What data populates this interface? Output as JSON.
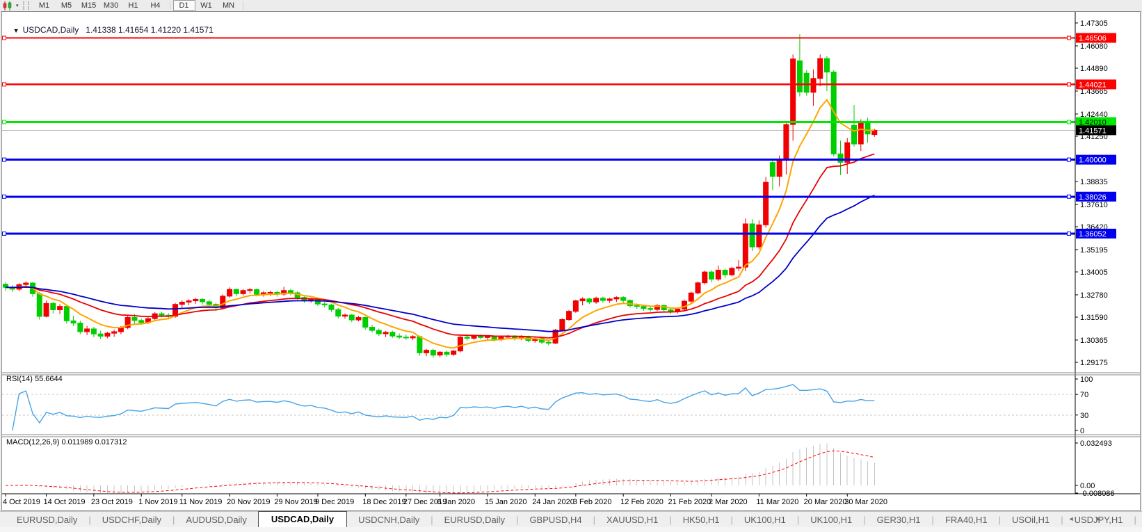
{
  "toolbar": {
    "timeframes": [
      "M1",
      "M5",
      "M15",
      "M30",
      "H1",
      "H4",
      "D1",
      "W1",
      "MN"
    ],
    "active_timeframe": "D1",
    "icons": {
      "chart_type": "candlestick-chart-icon",
      "dropdown": "▾"
    }
  },
  "chart_header": {
    "dropdown_icon": "▼",
    "symbol": "USDCAD,Daily",
    "ohlc": "1.41338 1.41654 1.41220 1.41571"
  },
  "price_axis": {
    "ticks": [
      "1.47305",
      "1.46080",
      "1.44890",
      "1.43665",
      "1.42440",
      "1.41250",
      "1.38835",
      "1.37610",
      "1.36420",
      "1.35195",
      "1.34005",
      "1.32780",
      "1.31590",
      "1.30365",
      "1.29175"
    ]
  },
  "hlines": [
    {
      "price": 1.46506,
      "label": "1.46506",
      "color": "#FF0000",
      "text_color": "#FFFFFF",
      "width": 2.4
    },
    {
      "price": 1.44021,
      "label": "1.44021",
      "color": "#FF0000",
      "text_color": "#FFFFFF",
      "width": 2.4
    },
    {
      "price": 1.4201,
      "label": "1.42010",
      "color": "#00E800",
      "text_color": "#000000",
      "width": 3
    },
    {
      "price": 1.4,
      "label": "1.40000",
      "color": "#0000EE",
      "text_color": "#FFFFFF",
      "width": 3
    },
    {
      "price": 1.38026,
      "label": "1.38026",
      "color": "#0000EE",
      "text_color": "#FFFFFF",
      "width": 3
    },
    {
      "price": 1.36052,
      "label": "1.36052",
      "color": "#0000EE",
      "text_color": "#FFFFFF",
      "width": 3
    }
  ],
  "current_price": {
    "value": 1.41571,
    "label": "1.41571",
    "line_color": "#BBBBBB",
    "bg": "#000000",
    "text_color": "#FFFFFF"
  },
  "indicators": {
    "rsi": {
      "label": "RSI(14) 55.6644",
      "period": 14,
      "value": "55.6644",
      "scale_labels": [
        "100",
        "70",
        "30",
        "0"
      ],
      "levels": [
        70,
        30
      ],
      "color": "#46A3E8"
    },
    "macd": {
      "label": "MACD(12,26,9) 0.011989 0.017312",
      "params": "12,26,9",
      "values": [
        "0.011989",
        "0.017312"
      ],
      "scale_labels": [
        {
          "v": 0.032493,
          "text": "0.032493"
        },
        {
          "v": 0.0,
          "text": "0.00"
        },
        {
          "v": -0.008086,
          "text": "-0.008086"
        }
      ],
      "histogram_color": "#C4C4C4",
      "signal_color": "#FF0000"
    }
  },
  "time_axis": {
    "labels": [
      {
        "text": "4 Oct 2019",
        "bar": 0
      },
      {
        "text": "14 Oct 2019",
        "bar": 6
      },
      {
        "text": "23 Oct 2019",
        "bar": 13
      },
      {
        "text": "1 Nov 2019",
        "bar": 20
      },
      {
        "text": "11 Nov 2019",
        "bar": 26
      },
      {
        "text": "20 Nov 2019",
        "bar": 33
      },
      {
        "text": "29 Nov 2019",
        "bar": 40
      },
      {
        "text": "9 Dec 2019",
        "bar": 46
      },
      {
        "text": "18 Dec 2019",
        "bar": 53
      },
      {
        "text": "27 Dec 2019",
        "bar": 59
      },
      {
        "text": "6 Jan 2020",
        "bar": 64
      },
      {
        "text": "15 Jan 2020",
        "bar": 71
      },
      {
        "text": "24 Jan 2020",
        "bar": 78
      },
      {
        "text": "3 Feb 2020",
        "bar": 84
      },
      {
        "text": "12 Feb 2020",
        "bar": 91
      },
      {
        "text": "21 Feb 2020",
        "bar": 98
      },
      {
        "text": "2 Mar 2020",
        "bar": 104
      },
      {
        "text": "11 Mar 2020",
        "bar": 111
      },
      {
        "text": "20 Mar 2020",
        "bar": 118
      },
      {
        "text": "30 Mar 2020",
        "bar": 124
      }
    ]
  },
  "tabs": {
    "items": [
      {
        "label": "EURUSD,Daily",
        "active": false
      },
      {
        "label": "USDCHF,Daily",
        "active": false
      },
      {
        "label": "AUDUSD,Daily",
        "active": false
      },
      {
        "label": "USDCAD,Daily",
        "active": true
      },
      {
        "label": "USDCNH,Daily",
        "active": false
      },
      {
        "label": "EURUSD,Daily",
        "active": false
      },
      {
        "label": "GBPUSD,H4",
        "active": false
      },
      {
        "label": "XAUUSD,H1",
        "active": false
      },
      {
        "label": "HK50,H1",
        "active": false
      },
      {
        "label": "UK100,H1",
        "active": false
      },
      {
        "label": "UK100,H1",
        "active": false
      },
      {
        "label": "GER30,H1",
        "active": false
      },
      {
        "label": "FRA40,H1",
        "active": false
      },
      {
        "label": "USOil,H1",
        "active": false
      },
      {
        "label": "USDJPY,H1",
        "active": false
      }
    ],
    "scroll_arrows": "◄  ►"
  },
  "chart_data": {
    "type": "candlestick",
    "symbol": "USDCAD",
    "timeframe": "Daily",
    "title_ohlc": {
      "open": 1.41338,
      "high": 1.41654,
      "low": 1.4122,
      "close": 1.41571
    },
    "bull_color": "#F00000",
    "bear_color": "#00CE00",
    "note": "red candles = up days, green candles = down days",
    "y_axis_top": 1.47899,
    "y_axis_bottom": 1.28655,
    "moving_averages": [
      {
        "name": "fast",
        "period": 8,
        "color": "#FFA500"
      },
      {
        "name": "medium",
        "period": 21,
        "color": "#E80000"
      },
      {
        "name": "slow",
        "period": 40,
        "color": "#0000C8"
      }
    ],
    "candles": [
      [
        1.3335,
        1.3347,
        1.33,
        1.3318
      ],
      [
        1.3318,
        1.333,
        1.3293,
        1.3308
      ],
      [
        1.3308,
        1.334,
        1.3298,
        1.3333
      ],
      [
        1.3333,
        1.335,
        1.3315,
        1.3341
      ],
      [
        1.3341,
        1.3346,
        1.3268,
        1.3284
      ],
      [
        1.3284,
        1.3292,
        1.3145,
        1.3163
      ],
      [
        1.3163,
        1.3247,
        1.3158,
        1.3232
      ],
      [
        1.3232,
        1.324,
        1.3178,
        1.3198
      ],
      [
        1.3198,
        1.3228,
        1.3175,
        1.3216
      ],
      [
        1.3216,
        1.3222,
        1.3124,
        1.3139
      ],
      [
        1.3139,
        1.3166,
        1.3112,
        1.3127
      ],
      [
        1.3127,
        1.314,
        1.3068,
        1.3081
      ],
      [
        1.3081,
        1.3112,
        1.3063,
        1.3096
      ],
      [
        1.3096,
        1.3106,
        1.3052,
        1.3069
      ],
      [
        1.3069,
        1.3086,
        1.3042,
        1.3057
      ],
      [
        1.3057,
        1.3081,
        1.3046,
        1.3073
      ],
      [
        1.3073,
        1.3092,
        1.3054,
        1.3081
      ],
      [
        1.3081,
        1.3112,
        1.3068,
        1.3103
      ],
      [
        1.3103,
        1.3167,
        1.3094,
        1.3157
      ],
      [
        1.3157,
        1.3176,
        1.3123,
        1.3141
      ],
      [
        1.3141,
        1.3152,
        1.3118,
        1.313
      ],
      [
        1.313,
        1.316,
        1.3122,
        1.3151
      ],
      [
        1.3151,
        1.3186,
        1.314,
        1.3177
      ],
      [
        1.3177,
        1.3188,
        1.3158,
        1.3169
      ],
      [
        1.3169,
        1.318,
        1.3148,
        1.3163
      ],
      [
        1.3163,
        1.3235,
        1.3155,
        1.3227
      ],
      [
        1.3227,
        1.3248,
        1.3208,
        1.3239
      ],
      [
        1.3239,
        1.3254,
        1.3222,
        1.3246
      ],
      [
        1.3246,
        1.3262,
        1.323,
        1.3254
      ],
      [
        1.3254,
        1.326,
        1.3226,
        1.3241
      ],
      [
        1.3241,
        1.325,
        1.3212,
        1.3227
      ],
      [
        1.3227,
        1.3236,
        1.3192,
        1.3209
      ],
      [
        1.3209,
        1.328,
        1.3202,
        1.3271
      ],
      [
        1.3271,
        1.3318,
        1.3262,
        1.3307
      ],
      [
        1.3307,
        1.3312,
        1.327,
        1.3284
      ],
      [
        1.3284,
        1.331,
        1.3274,
        1.3301
      ],
      [
        1.3301,
        1.3315,
        1.3286,
        1.3306
      ],
      [
        1.3306,
        1.3312,
        1.327,
        1.3281
      ],
      [
        1.3281,
        1.3298,
        1.3268,
        1.3289
      ],
      [
        1.3289,
        1.33,
        1.3272,
        1.3291
      ],
      [
        1.3291,
        1.3299,
        1.3268,
        1.3282
      ],
      [
        1.3282,
        1.3321,
        1.3274,
        1.3301
      ],
      [
        1.3301,
        1.331,
        1.3276,
        1.3289
      ],
      [
        1.3289,
        1.3297,
        1.3252,
        1.3264
      ],
      [
        1.3264,
        1.3274,
        1.3235,
        1.3247
      ],
      [
        1.3247,
        1.3262,
        1.3236,
        1.3253
      ],
      [
        1.3253,
        1.3258,
        1.3218,
        1.3229
      ],
      [
        1.3229,
        1.324,
        1.321,
        1.3224
      ],
      [
        1.3224,
        1.3231,
        1.3186,
        1.3199
      ],
      [
        1.3199,
        1.3208,
        1.3152,
        1.3164
      ],
      [
        1.3164,
        1.3178,
        1.315,
        1.317
      ],
      [
        1.317,
        1.3176,
        1.3132,
        1.3144
      ],
      [
        1.3144,
        1.3165,
        1.3136,
        1.3157
      ],
      [
        1.3157,
        1.3161,
        1.3092,
        1.3105
      ],
      [
        1.3105,
        1.3118,
        1.3076,
        1.3088
      ],
      [
        1.3088,
        1.3098,
        1.3058,
        1.307
      ],
      [
        1.307,
        1.3085,
        1.3052,
        1.3078
      ],
      [
        1.3078,
        1.3086,
        1.3048,
        1.3058
      ],
      [
        1.3058,
        1.3072,
        1.3042,
        1.3052
      ],
      [
        1.3052,
        1.3066,
        1.3038,
        1.3048
      ],
      [
        1.3048,
        1.3062,
        1.3036,
        1.3055
      ],
      [
        1.3055,
        1.306,
        1.2952,
        1.2968
      ],
      [
        1.2968,
        1.2989,
        1.295,
        1.2982
      ],
      [
        1.2982,
        1.299,
        1.2942,
        1.2956
      ],
      [
        1.2956,
        1.2978,
        1.2944,
        1.2972
      ],
      [
        1.2972,
        1.298,
        1.2948,
        1.296
      ],
      [
        1.296,
        1.2984,
        1.2952,
        1.2978
      ],
      [
        1.2978,
        1.3062,
        1.297,
        1.3052
      ],
      [
        1.3052,
        1.3068,
        1.3034,
        1.3046
      ],
      [
        1.3046,
        1.3066,
        1.3036,
        1.3058
      ],
      [
        1.3058,
        1.3068,
        1.304,
        1.305
      ],
      [
        1.305,
        1.3062,
        1.3036,
        1.3055
      ],
      [
        1.3055,
        1.306,
        1.3028,
        1.3038
      ],
      [
        1.3038,
        1.3058,
        1.303,
        1.3052
      ],
      [
        1.3052,
        1.3064,
        1.3042,
        1.3058
      ],
      [
        1.3058,
        1.3062,
        1.3034,
        1.3044
      ],
      [
        1.3044,
        1.3062,
        1.3036,
        1.3056
      ],
      [
        1.3056,
        1.306,
        1.3024,
        1.3034
      ],
      [
        1.3034,
        1.305,
        1.3022,
        1.3044
      ],
      [
        1.3044,
        1.3049,
        1.3014,
        1.3025
      ],
      [
        1.3025,
        1.3036,
        1.3008,
        1.302
      ],
      [
        1.302,
        1.3096,
        1.3014,
        1.309
      ],
      [
        1.309,
        1.3153,
        1.3082,
        1.3146
      ],
      [
        1.3146,
        1.3198,
        1.3138,
        1.319
      ],
      [
        1.319,
        1.3252,
        1.3182,
        1.3246
      ],
      [
        1.3246,
        1.3265,
        1.3222,
        1.3256
      ],
      [
        1.3256,
        1.3262,
        1.3228,
        1.324
      ],
      [
        1.324,
        1.3268,
        1.323,
        1.326
      ],
      [
        1.326,
        1.3268,
        1.3236,
        1.3248
      ],
      [
        1.3248,
        1.3262,
        1.3234,
        1.3256
      ],
      [
        1.3256,
        1.327,
        1.324,
        1.3264
      ],
      [
        1.3264,
        1.327,
        1.3236,
        1.3248
      ],
      [
        1.3248,
        1.3254,
        1.321,
        1.322
      ],
      [
        1.322,
        1.3231,
        1.3202,
        1.3216
      ],
      [
        1.3216,
        1.3224,
        1.3192,
        1.3205
      ],
      [
        1.3205,
        1.3216,
        1.3188,
        1.32
      ],
      [
        1.32,
        1.3228,
        1.3192,
        1.3221
      ],
      [
        1.3221,
        1.3226,
        1.3186,
        1.3198
      ],
      [
        1.3198,
        1.3208,
        1.3174,
        1.3188
      ],
      [
        1.3188,
        1.3212,
        1.3178,
        1.3202
      ],
      [
        1.3202,
        1.3252,
        1.3194,
        1.3244
      ],
      [
        1.3244,
        1.3296,
        1.3236,
        1.3288
      ],
      [
        1.3288,
        1.335,
        1.328,
        1.3342
      ],
      [
        1.3342,
        1.3408,
        1.3334,
        1.34
      ],
      [
        1.34,
        1.341,
        1.3345,
        1.3362
      ],
      [
        1.3362,
        1.3435,
        1.3352,
        1.341
      ],
      [
        1.341,
        1.3418,
        1.3368,
        1.3385
      ],
      [
        1.3385,
        1.3428,
        1.3376,
        1.342
      ],
      [
        1.342,
        1.3464,
        1.3405,
        1.3426
      ],
      [
        1.3426,
        1.3686,
        1.3404,
        1.3657
      ],
      [
        1.3657,
        1.3682,
        1.3512,
        1.3534
      ],
      [
        1.3534,
        1.3676,
        1.3521,
        1.3652
      ],
      [
        1.3652,
        1.3908,
        1.3638,
        1.3879
      ],
      [
        1.3985,
        1.4002,
        1.3838,
        1.3911
      ],
      [
        1.3911,
        1.4022,
        1.3858,
        1.3998
      ],
      [
        1.3998,
        1.4205,
        1.3921,
        1.4188
      ],
      [
        1.4188,
        1.4562,
        1.4102,
        1.4538
      ],
      [
        1.4528,
        1.467,
        1.4338,
        1.4362
      ],
      [
        1.4462,
        1.4478,
        1.4342,
        1.436
      ],
      [
        1.436,
        1.4482,
        1.4288,
        1.4434
      ],
      [
        1.4434,
        1.4562,
        1.4392,
        1.454
      ],
      [
        1.454,
        1.4554,
        1.4366,
        1.4468
      ],
      [
        1.4468,
        1.4478,
        1.4018,
        1.4031
      ],
      [
        1.4031,
        1.4102,
        1.3918,
        1.3986
      ],
      [
        1.3986,
        1.4116,
        1.3924,
        1.4091
      ],
      [
        1.4183,
        1.4292,
        1.407,
        1.4084
      ],
      [
        1.4084,
        1.4216,
        1.4046,
        1.4197
      ],
      [
        1.4197,
        1.4224,
        1.409,
        1.4137
      ],
      [
        1.41338,
        1.41654,
        1.4122,
        1.41571
      ]
    ]
  }
}
